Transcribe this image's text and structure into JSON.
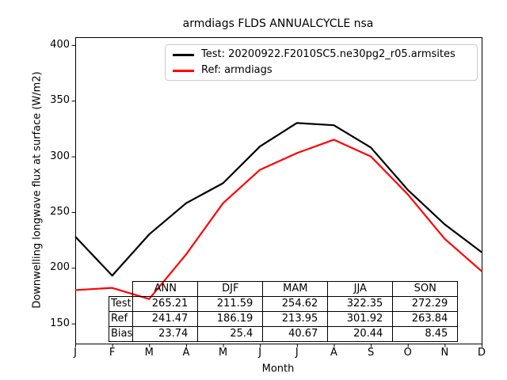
{
  "chart_data": {
    "type": "line",
    "title": "armdiags FLDS ANNUALCYCLE nsa",
    "xlabel": "Month",
    "ylabel": "Downwelling longwave flux at surface (W/m2)",
    "categories": [
      "J",
      "F",
      "M",
      "A",
      "M",
      "J",
      "J",
      "A",
      "S",
      "O",
      "N",
      "D"
    ],
    "yticks": [
      150,
      200,
      250,
      300,
      350,
      400
    ],
    "ylim": [
      132,
      407
    ],
    "grid": false,
    "legend_position": "upper center",
    "axis_color": "#000000",
    "series": [
      {
        "name": "Test",
        "label": "Test: 20200922.F2010SC5.ne30pg2_r05.armsites",
        "color": "#000000",
        "values": [
          228,
          193,
          230,
          258,
          276,
          309,
          330,
          328,
          308,
          270,
          239,
          214
        ]
      },
      {
        "name": "Ref",
        "label": "Ref: armdiags",
        "color": "#ff0000",
        "values": [
          180,
          182,
          172,
          212,
          258,
          288,
          303,
          315,
          300,
          266,
          226,
          197
        ]
      }
    ],
    "table": {
      "col_labels": [
        "ANN",
        "DJF",
        "MAM",
        "JJA",
        "SON"
      ],
      "rows": [
        {
          "label": "Test",
          "values": [
            "265.21",
            "211.59",
            "254.62",
            "322.35",
            "272.29"
          ]
        },
        {
          "label": "Ref",
          "values": [
            "241.47",
            "186.19",
            "213.95",
            "301.92",
            "263.84"
          ]
        },
        {
          "label": "Bias",
          "values": [
            "23.74",
            "25.4",
            "40.67",
            "20.44",
            "8.45"
          ]
        }
      ]
    }
  }
}
